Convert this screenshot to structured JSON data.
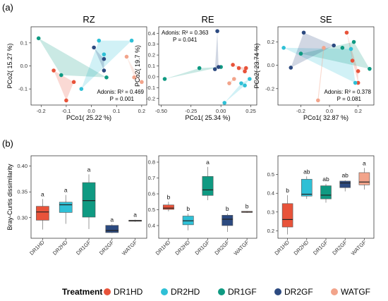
{
  "figure": {
    "panel_a_label": "(a)",
    "panel_b_label": "(b)"
  },
  "legend": {
    "title": "Treatment",
    "items": [
      {
        "name": "DR1HD",
        "color": "#e8533a"
      },
      {
        "name": "DR2HD",
        "color": "#2fc0d6"
      },
      {
        "name": "DR1GF",
        "color": "#0f9a82"
      },
      {
        "name": "DR2GF",
        "color": "#2c4a80"
      },
      {
        "name": "WATGF",
        "color": "#f2a48b"
      }
    ]
  },
  "chart_data": [
    {
      "type": "scatter",
      "title": "RZ",
      "xlabel": "PCo1( 25.22 %)",
      "ylabel": "PCo2( 15.27 %)",
      "xlim": [
        -0.24,
        0.22
      ],
      "ylim": [
        -0.17,
        0.17
      ],
      "xticks": [
        -0.2,
        -0.1,
        0.0,
        0.1,
        0.2
      ],
      "xtick_labels": [
        "-0.2",
        "-0.1",
        "0.0",
        "0.1",
        "0.2"
      ],
      "yticks": [
        -0.1,
        0.0,
        0.1
      ],
      "ytick_labels": [
        "-0.1",
        "0.0",
        "0.1"
      ],
      "annotation": [
        "Adonis: R² = 0.469",
        "P = 0.001"
      ],
      "annotation_position": "bottom-right",
      "series": [
        {
          "name": "DR1HD",
          "points": [
            [
              -0.15,
              -0.02
            ],
            [
              -0.07,
              -0.07
            ],
            [
              -0.1,
              -0.15
            ]
          ]
        },
        {
          "name": "DR2HD",
          "points": [
            [
              0.03,
              0.11
            ],
            [
              0.05,
              0.05
            ],
            [
              0.16,
              0.11
            ],
            [
              -0.04,
              -0.1
            ]
          ]
        },
        {
          "name": "DR1GF",
          "points": [
            [
              -0.21,
              0.12
            ],
            [
              -0.12,
              -0.04
            ],
            [
              0.06,
              -0.05
            ]
          ]
        },
        {
          "name": "DR2GF",
          "points": [
            [
              0.01,
              0.08
            ],
            [
              0.05,
              -0.02
            ],
            [
              0.05,
              0.03
            ]
          ]
        },
        {
          "name": "WATGF",
          "points": [
            [
              0.14,
              0.04
            ],
            [
              0.17,
              -0.05
            ],
            [
              0.2,
              -0.07
            ]
          ]
        }
      ]
    },
    {
      "type": "scatter",
      "title": "RE",
      "xlabel": "PCo1( 25.34 %)",
      "ylabel": "PCo2( 19.7 %)",
      "xlim": [
        -0.52,
        0.3
      ],
      "ylim": [
        -0.26,
        0.46
      ],
      "xticks": [
        -0.5,
        -0.25,
        0.0,
        0.25
      ],
      "xtick_labels": [
        "-0.50",
        "-0.25",
        "0.00",
        "0.25"
      ],
      "yticks": [
        -0.2,
        -0.1,
        0.0,
        0.1,
        0.2,
        0.3,
        0.4
      ],
      "ytick_labels": [
        "-0.2",
        "-0.1",
        "0.0",
        "0.1",
        "0.2",
        "0.3",
        "0.4"
      ],
      "annotation": [
        "Adonis: R² = 0.363",
        "P = 0.041"
      ],
      "annotation_position": "top-left",
      "series": [
        {
          "name": "DR1HD",
          "points": [
            [
              0.1,
              0.11
            ],
            [
              0.2,
              0.05
            ],
            [
              0.15,
              0.08
            ],
            [
              0.21,
              0.08
            ]
          ]
        },
        {
          "name": "DR2HD",
          "points": [
            [
              0.17,
              -0.06
            ],
            [
              0.24,
              -0.02
            ],
            [
              0.03,
              -0.24
            ],
            [
              0.2,
              -0.08
            ]
          ]
        },
        {
          "name": "DR1GF",
          "points": [
            [
              -0.47,
              -0.02
            ],
            [
              -0.18,
              0.08
            ],
            [
              0.0,
              0.09
            ]
          ]
        },
        {
          "name": "DR2GF",
          "points": [
            [
              -0.03,
              0.42
            ],
            [
              -0.05,
              0.07
            ],
            [
              -0.02,
              0.09
            ]
          ]
        },
        {
          "name": "WATGF",
          "points": [
            [
              0.11,
              -0.02
            ],
            [
              0.07,
              -0.06
            ]
          ]
        }
      ]
    },
    {
      "type": "scatter",
      "title": "SE",
      "xlabel": "PCo1( 32.87 %)",
      "ylabel": "PCo2( 23.74 %)",
      "xlim": [
        -0.36,
        0.31
      ],
      "ylim": [
        -0.34,
        0.33
      ],
      "xticks": [
        -0.2,
        0.0,
        0.2
      ],
      "xtick_labels": [
        "-0.2",
        "0.0",
        "0.2"
      ],
      "yticks": [
        -0.2,
        0.0,
        0.2
      ],
      "ytick_labels": [
        "-0.2",
        "0.0",
        "0.2"
      ],
      "annotation": [
        "Adonis: R² = 0.378",
        "P = 0.081"
      ],
      "annotation_position": "bottom-right",
      "series": [
        {
          "name": "DR1HD",
          "points": [
            [
              0.12,
              0.28
            ],
            [
              0.16,
              0.04
            ],
            [
              0.2,
              -0.15
            ],
            [
              0.2,
              -0.05
            ]
          ]
        },
        {
          "name": "DR2HD",
          "points": [
            [
              -0.32,
              0.15
            ],
            [
              0.18,
              -0.15
            ],
            [
              0.15,
              0.14
            ]
          ]
        },
        {
          "name": "DR1GF",
          "points": [
            [
              -0.2,
              0.1
            ],
            [
              0.09,
              0.15
            ],
            [
              0.28,
              -0.03
            ],
            [
              0.17,
              0.2
            ]
          ]
        },
        {
          "name": "DR2GF",
          "points": [
            [
              -0.18,
              0.28
            ],
            [
              0.03,
              0.17
            ],
            [
              -0.27,
              -0.02
            ]
          ]
        },
        {
          "name": "WATGF",
          "points": [
            [
              -0.04,
              0.15
            ],
            [
              -0.08,
              -0.3
            ]
          ]
        }
      ]
    },
    {
      "type": "box",
      "title": "",
      "ylabel": "Bray-Curtis dissimilarity",
      "categories": [
        "DR1HD",
        "DR2HD",
        "DR1GF",
        "DR2GF",
        "WATGF"
      ],
      "ylim": [
        0.26,
        0.42
      ],
      "yticks": [
        0.3,
        0.35,
        0.4
      ],
      "ytick_labels": [
        "0.30",
        "0.35",
        "0.40"
      ],
      "boxes": [
        {
          "min": 0.277,
          "q1": 0.295,
          "median": 0.311,
          "q3": 0.322,
          "max": 0.336
        },
        {
          "min": 0.288,
          "q1": 0.31,
          "median": 0.325,
          "q3": 0.33,
          "max": 0.344
        },
        {
          "min": 0.278,
          "q1": 0.301,
          "median": 0.333,
          "q3": 0.368,
          "max": 0.384
        },
        {
          "min": 0.27,
          "q1": 0.271,
          "median": 0.275,
          "q3": 0.285,
          "max": 0.287
        },
        {
          "min": 0.292,
          "q1": 0.293,
          "median": 0.294,
          "q3": 0.295,
          "max": 0.296
        }
      ],
      "significance": [
        "a",
        "a",
        "a",
        "a",
        "a"
      ]
    },
    {
      "type": "box",
      "title": "",
      "categories": [
        "DR1HD",
        "DR2HD",
        "DR1GF",
        "DR2GF",
        "WATGF"
      ],
      "ylim": [
        0.32,
        0.84
      ],
      "yticks": [
        0.4,
        0.5,
        0.6,
        0.7,
        0.8
      ],
      "ytick_labels": [
        "0.4",
        "0.5",
        "0.6",
        "0.7",
        "0.8"
      ],
      "boxes": [
        {
          "min": 0.49,
          "q1": 0.502,
          "median": 0.51,
          "q3": 0.53,
          "max": 0.55
        },
        {
          "min": 0.37,
          "q1": 0.405,
          "median": 0.43,
          "q3": 0.46,
          "max": 0.475
        },
        {
          "min": 0.56,
          "q1": 0.59,
          "median": 0.625,
          "q3": 0.71,
          "max": 0.77
        },
        {
          "min": 0.36,
          "q1": 0.4,
          "median": 0.44,
          "q3": 0.465,
          "max": 0.475
        },
        {
          "min": 0.48,
          "q1": 0.483,
          "median": 0.485,
          "q3": 0.49,
          "max": 0.492
        }
      ],
      "significance": [
        "b",
        "b",
        "a",
        "b",
        "b"
      ]
    },
    {
      "type": "box",
      "title": "",
      "categories": [
        "DR1HD",
        "DR2HD",
        "DR1GF",
        "DR2GF",
        "WATGF"
      ],
      "ylim": [
        0.16,
        0.6
      ],
      "yticks": [
        0.2,
        0.3,
        0.4,
        0.5
      ],
      "ytick_labels": [
        "0.2",
        "0.3",
        "0.4",
        "0.5"
      ],
      "boxes": [
        {
          "min": 0.18,
          "q1": 0.22,
          "median": 0.26,
          "q3": 0.345,
          "max": 0.39
        },
        {
          "min": 0.37,
          "q1": 0.385,
          "median": 0.395,
          "q3": 0.475,
          "max": 0.49
        },
        {
          "min": 0.35,
          "q1": 0.37,
          "median": 0.39,
          "q3": 0.44,
          "max": 0.45
        },
        {
          "min": 0.41,
          "q1": 0.43,
          "median": 0.455,
          "q3": 0.465,
          "max": 0.47
        },
        {
          "min": 0.42,
          "q1": 0.445,
          "median": 0.46,
          "q3": 0.51,
          "max": 0.535
        }
      ],
      "significance": [
        "b",
        "ab",
        "ab",
        "ab",
        "a"
      ]
    }
  ]
}
